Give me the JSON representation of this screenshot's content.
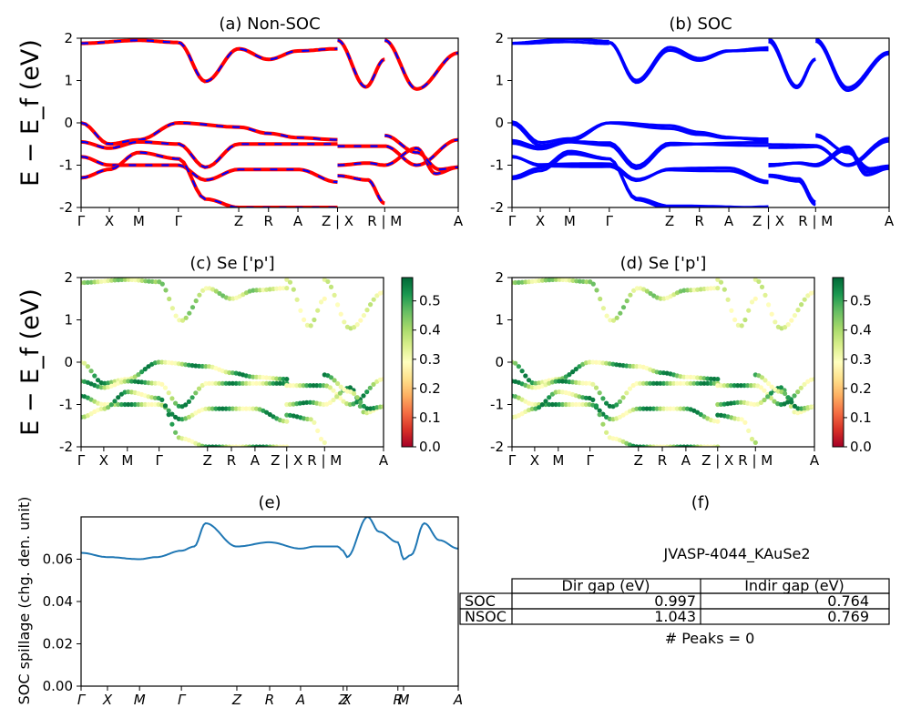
{
  "figure": {
    "ylabel_top": "E − E_f (eV)",
    "ylabel_mid": "E − E_f (eV)",
    "ylabel_bottom": "SOC spillage (chg. den. unit)"
  },
  "kpath": {
    "labels": [
      "Γ",
      "X",
      "M",
      "Γ",
      "Z",
      "R",
      "A",
      "Z | X",
      "R | M",
      "A"
    ],
    "positions": [
      0.0,
      0.075,
      0.153,
      0.258,
      0.418,
      0.497,
      0.575,
      0.68,
      0.805,
      1.0
    ]
  },
  "spill_kpath": {
    "labels": [
      "Γ",
      "X",
      "M",
      "Γ",
      "Z",
      "R",
      "A",
      "Z",
      "X",
      "R",
      "M",
      "A"
    ],
    "positions": [
      0.0,
      0.07,
      0.155,
      0.266,
      0.413,
      0.5,
      0.582,
      0.695,
      0.705,
      0.84,
      0.855,
      1.0
    ]
  },
  "colors": {
    "red": "#ff0000",
    "blue": "#0000ff",
    "spillage_line": "#1f77b4",
    "colormap": [
      "#a50026",
      "#d73027",
      "#f46d43",
      "#fdae61",
      "#fee08b",
      "#ffffbf",
      "#d9ef8b",
      "#a6d96a",
      "#66bd63",
      "#1a9850",
      "#006837"
    ]
  },
  "chart_data": [
    {
      "id": "a",
      "type": "line",
      "title": "(a) Non-SOC",
      "ylabel": "E − E_f (eV)",
      "ylim": [
        -2,
        2
      ],
      "yticks": [
        -2,
        -1,
        0,
        1,
        2
      ],
      "segments": [
        {
          "x": [
            0.0,
            0.258
          ],
          "anchors": [
            [
              0.0,
              1.88
            ],
            [
              0.153,
              1.95
            ],
            [
              0.258,
              1.9
            ]
          ]
        },
        {
          "x": [
            0.258,
            0.68
          ],
          "anchors": [
            [
              0.258,
              1.9
            ],
            [
              0.33,
              0.98
            ],
            [
              0.418,
              1.75
            ],
            [
              0.497,
              1.5
            ],
            [
              0.575,
              1.7
            ],
            [
              0.68,
              1.75
            ]
          ]
        },
        {
          "x": [
            0.68,
            0.805
          ],
          "anchors": [
            [
              0.68,
              1.95
            ],
            [
              0.755,
              0.85
            ],
            [
              0.805,
              1.5
            ]
          ]
        },
        {
          "x": [
            0.805,
            1.0
          ],
          "anchors": [
            [
              0.805,
              1.95
            ],
            [
              0.89,
              0.8
            ],
            [
              1.0,
              1.65
            ]
          ]
        },
        {
          "x": [
            0.0,
            0.68
          ],
          "anchors": [
            [
              0.0,
              0.0
            ],
            [
              0.075,
              -0.5
            ],
            [
              0.153,
              -0.4
            ],
            [
              0.258,
              0.0
            ],
            [
              0.418,
              -0.1
            ],
            [
              0.497,
              -0.25
            ],
            [
              0.575,
              -0.35
            ],
            [
              0.68,
              -0.4
            ]
          ]
        },
        {
          "x": [
            0.0,
            0.68
          ],
          "anchors": [
            [
              0.0,
              -0.45
            ],
            [
              0.075,
              -0.6
            ],
            [
              0.153,
              -0.45
            ],
            [
              0.258,
              -0.5
            ],
            [
              0.33,
              -1.05
            ],
            [
              0.418,
              -0.5
            ],
            [
              0.575,
              -0.5
            ],
            [
              0.68,
              -0.5
            ]
          ]
        },
        {
          "x": [
            0.0,
            0.68
          ],
          "anchors": [
            [
              0.0,
              -0.8
            ],
            [
              0.075,
              -1.0
            ],
            [
              0.153,
              -1.0
            ],
            [
              0.258,
              -1.0
            ],
            [
              0.33,
              -1.35
            ],
            [
              0.418,
              -1.1
            ],
            [
              0.575,
              -1.1
            ],
            [
              0.68,
              -1.4
            ]
          ]
        },
        {
          "x": [
            0.0,
            0.68
          ],
          "anchors": [
            [
              0.0,
              -1.3
            ],
            [
              0.075,
              -1.1
            ],
            [
              0.153,
              -0.7
            ],
            [
              0.258,
              -0.85
            ],
            [
              0.33,
              -1.8
            ],
            [
              0.418,
              -2.0
            ]
          ]
        },
        {
          "x": [
            0.68,
            1.0
          ],
          "anchors": [
            [
              0.68,
              -0.55
            ],
            [
              0.805,
              -0.55
            ],
            [
              0.89,
              -1.0
            ],
            [
              1.0,
              -0.4
            ]
          ]
        },
        {
          "x": [
            0.68,
            1.0
          ],
          "anchors": [
            [
              0.68,
              -1.0
            ],
            [
              0.76,
              -0.95
            ],
            [
              0.805,
              -1.0
            ],
            [
              0.89,
              -0.6
            ],
            [
              0.94,
              -1.2
            ],
            [
              1.0,
              -1.05
            ]
          ]
        },
        {
          "x": [
            0.68,
            0.805
          ],
          "anchors": [
            [
              0.68,
              -1.25
            ],
            [
              0.76,
              -1.35
            ],
            [
              0.805,
              -1.9
            ]
          ]
        },
        {
          "x": [
            0.805,
            1.0
          ],
          "anchors": [
            [
              0.805,
              -0.3
            ],
            [
              0.89,
              -0.7
            ],
            [
              0.95,
              -1.1
            ],
            [
              1.0,
              -1.05
            ]
          ]
        }
      ]
    },
    {
      "id": "b",
      "type": "line",
      "title": "(b) SOC",
      "ylim": [
        -2,
        2
      ],
      "yticks": [
        -2,
        -1,
        0,
        1,
        2
      ]
    },
    {
      "id": "c",
      "type": "scatter",
      "title": "(c)  Se ['p']",
      "ylabel": "E − E_f (eV)",
      "ylim": [
        -2,
        2
      ],
      "yticks": [
        -2,
        -1,
        0,
        1,
        2
      ],
      "colorbar": {
        "ticks": [
          0.0,
          0.1,
          0.2,
          0.3,
          0.4,
          0.5
        ],
        "range": [
          0.0,
          0.58
        ]
      }
    },
    {
      "id": "d",
      "type": "scatter",
      "title": "(d) Se ['p']",
      "ylim": [
        -2,
        2
      ],
      "yticks": [
        -2,
        -1,
        0,
        1,
        2
      ],
      "colorbar": {
        "ticks": [
          0.0,
          0.1,
          0.2,
          0.3,
          0.4,
          0.5
        ],
        "range": [
          0.0,
          0.58
        ]
      }
    },
    {
      "id": "e",
      "type": "line",
      "title": "(e)",
      "ylabel": "SOC spillage (chg. den. unit)",
      "ylim": [
        0.0,
        0.08
      ],
      "yticks": [
        0.0,
        0.02,
        0.04,
        0.06
      ],
      "x": [
        0.0,
        0.07,
        0.155,
        0.2,
        0.266,
        0.3,
        0.33,
        0.413,
        0.5,
        0.582,
        0.62,
        0.68,
        0.695,
        0.705,
        0.76,
        0.79,
        0.84,
        0.855,
        0.875,
        0.91,
        0.95,
        1.0
      ],
      "y": [
        0.063,
        0.061,
        0.06,
        0.061,
        0.064,
        0.066,
        0.077,
        0.066,
        0.068,
        0.065,
        0.066,
        0.066,
        0.064,
        0.061,
        0.08,
        0.073,
        0.068,
        0.06,
        0.062,
        0.077,
        0.069,
        0.065
      ]
    }
  ],
  "table_panel": {
    "title": "(f)",
    "material": "JVASP-4044_KAuSe2",
    "headers": [
      "",
      "Dir gap (eV)",
      "Indir gap (eV)"
    ],
    "rows": [
      [
        "SOC",
        "0.997",
        "0.764"
      ],
      [
        "NSOC",
        "1.043",
        "0.769"
      ]
    ],
    "footer": "# Peaks = 0"
  }
}
